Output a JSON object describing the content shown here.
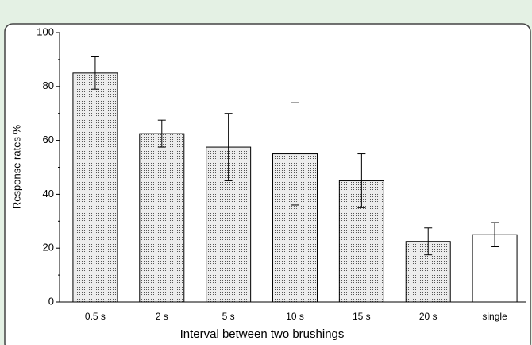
{
  "chart_data": {
    "type": "bar",
    "x_label": "Interval between two brushings",
    "y_label": "Response rates %",
    "categories": [
      "0.5 s",
      "2 s",
      "5 s",
      "10 s",
      "15 s",
      "20 s",
      "single"
    ],
    "values": [
      85,
      62.5,
      57.5,
      55,
      45,
      22.5,
      25
    ],
    "errors": [
      6,
      5,
      12.5,
      19,
      10,
      5,
      4.5
    ],
    "fills": [
      "dotted",
      "dotted",
      "dotted",
      "dotted",
      "dotted",
      "dotted",
      "#ffffff"
    ],
    "ylim": [
      0,
      100
    ],
    "yticks": [
      0,
      20,
      40,
      60,
      80,
      100
    ],
    "yminorticks": [
      10,
      30,
      50,
      70,
      90
    ]
  }
}
